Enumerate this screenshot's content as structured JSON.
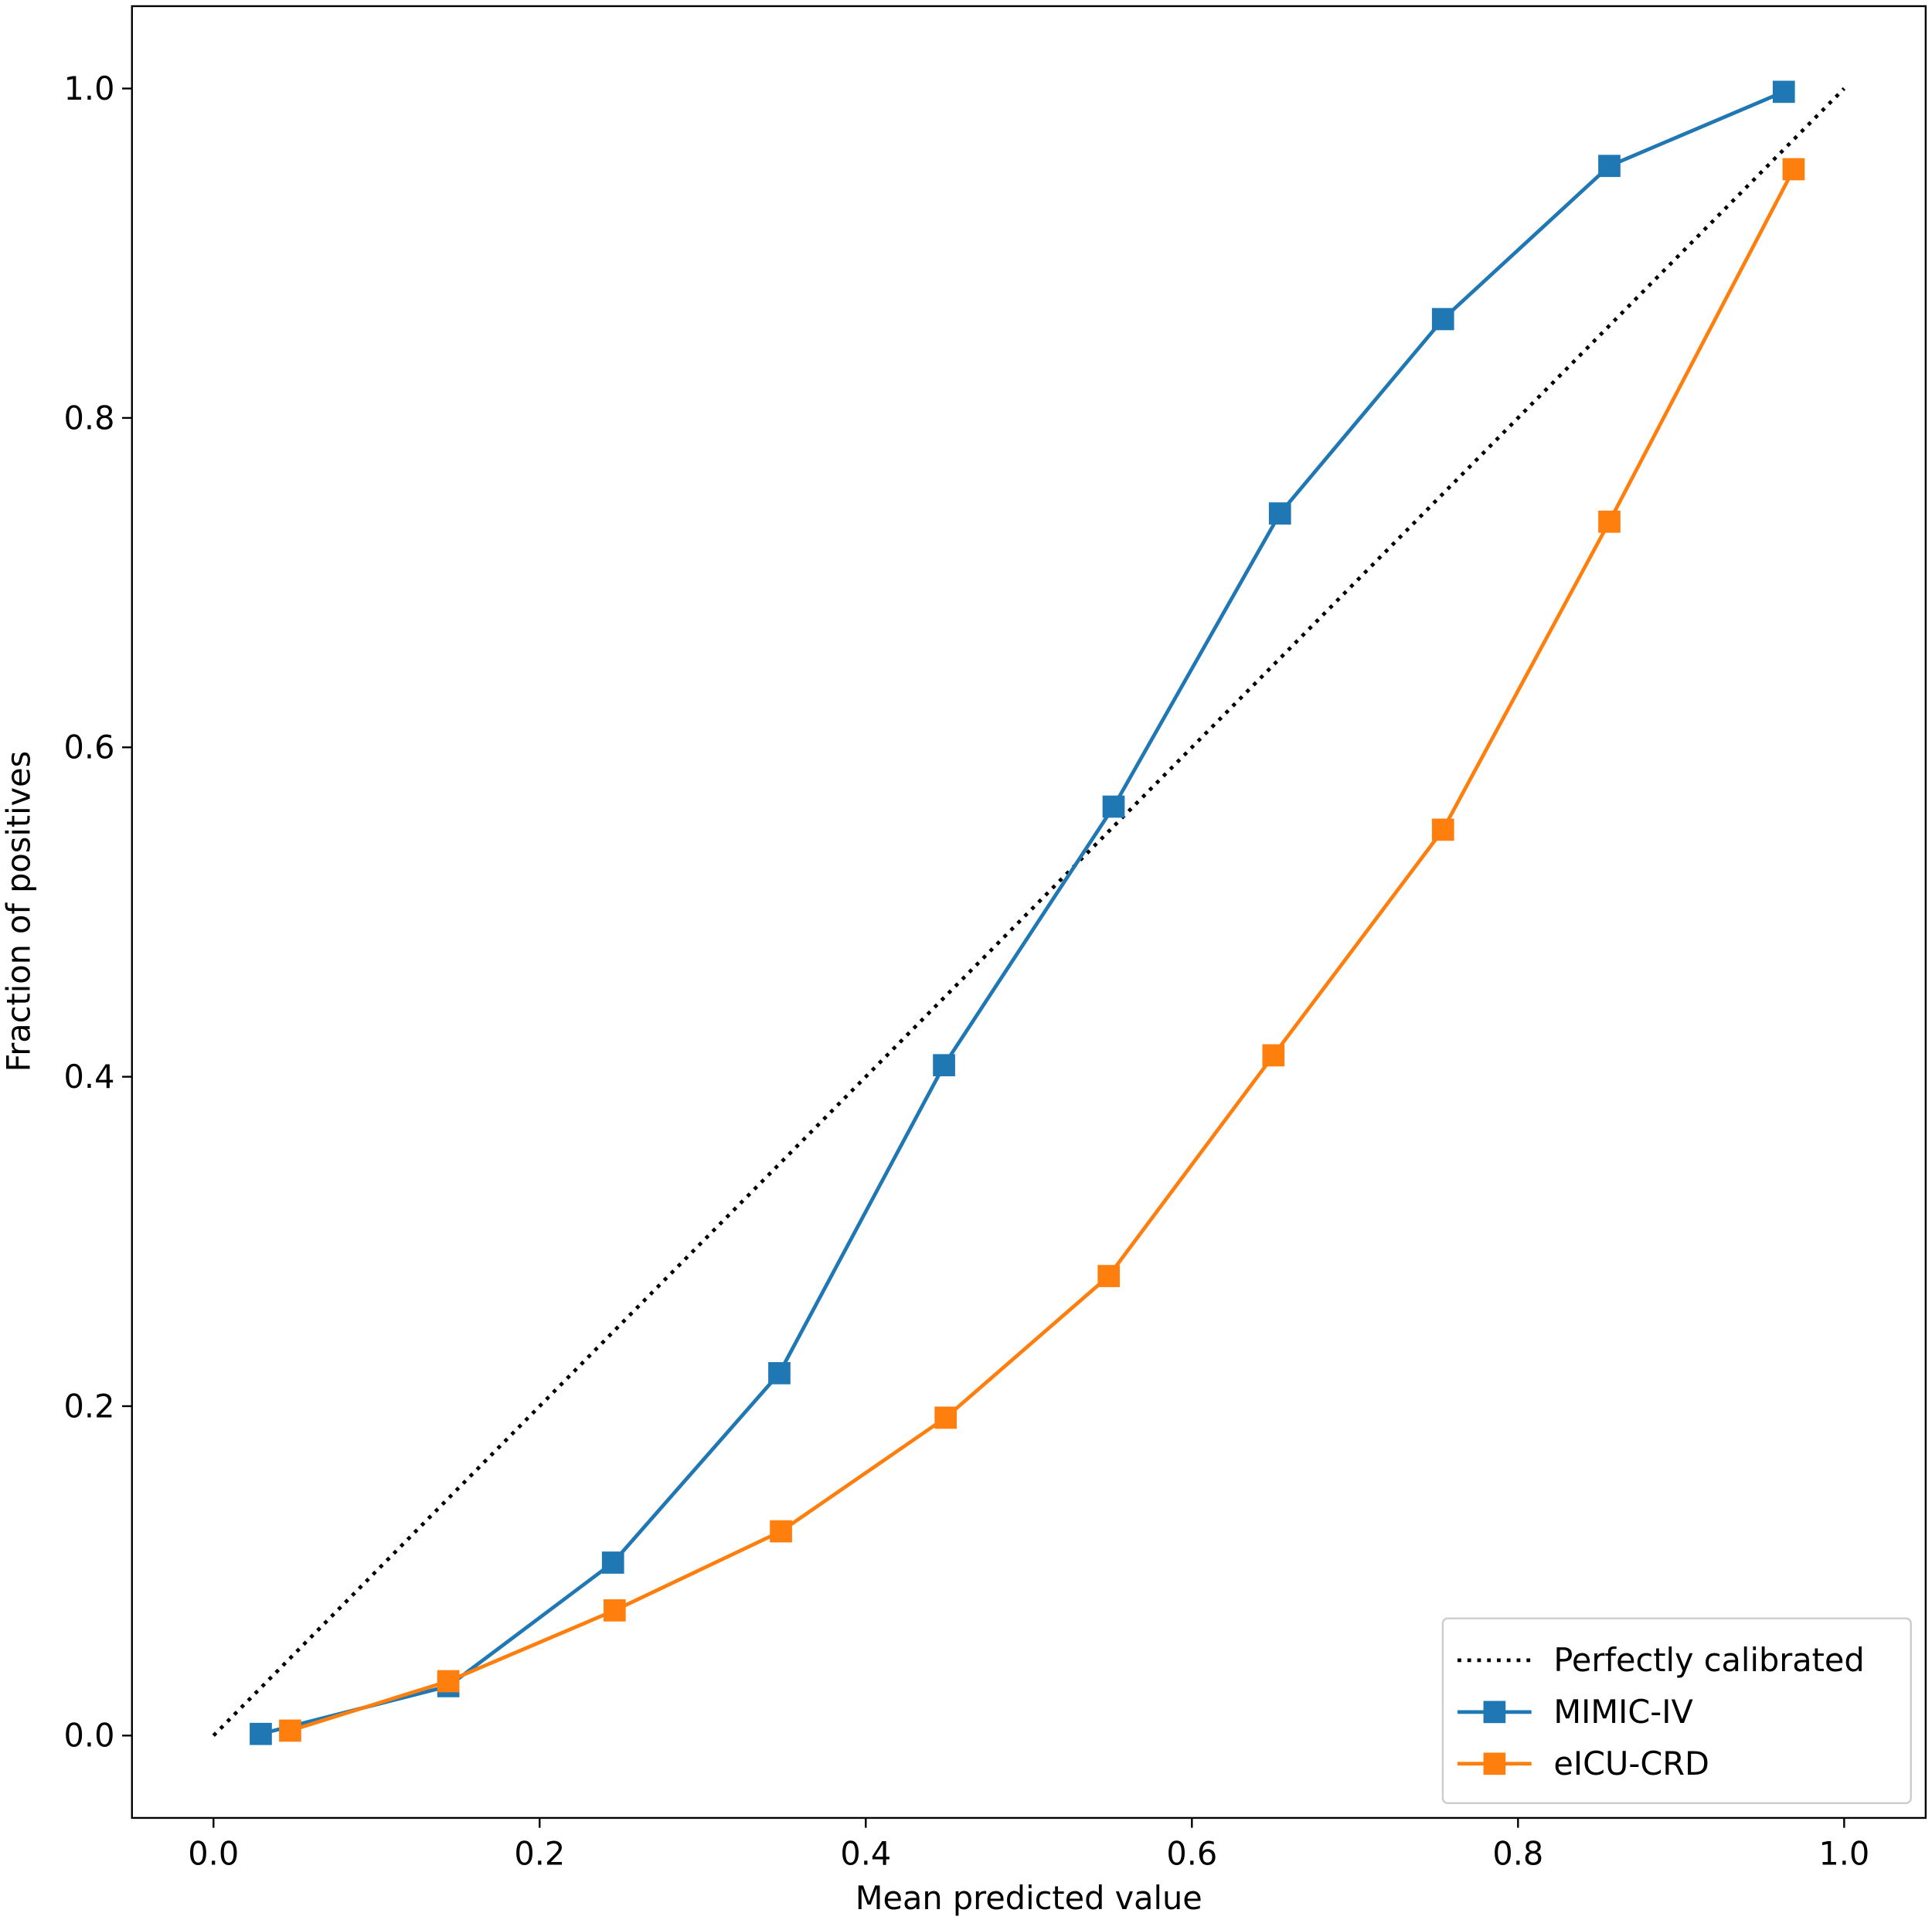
{
  "chart_data": {
    "type": "line",
    "x_label": "Mean predicted value",
    "y_label": "Fraction of positives",
    "xlim": [
      -0.05,
      1.05
    ],
    "ylim": [
      -0.05,
      1.05
    ],
    "xticks": [
      {
        "value": 0,
        "label": "0.0"
      },
      0.2,
      0.4,
      0.6,
      0.8,
      {
        "value": 1,
        "label": "1.0"
      }
    ],
    "yticks": [
      {
        "value": 0,
        "label": "0.0"
      },
      0.2,
      0.4,
      0.6,
      0.8,
      {
        "value": 1,
        "label": "1.0"
      }
    ],
    "grid": false,
    "legend": "lower right",
    "series": [
      {
        "name": "Perfectly calibrated",
        "color": "#000000",
        "style": "dotted",
        "marker": "none",
        "x": [
          0,
          1
        ],
        "values": [
          0,
          1
        ]
      },
      {
        "name": "MIMIC-IV",
        "color": "#1f77b4",
        "style": "solid",
        "marker": "square",
        "x": [
          0.029,
          0.144,
          0.245,
          0.347,
          0.448,
          0.552,
          0.654,
          0.754,
          0.856,
          0.963
        ],
        "values": [
          0.001,
          0.03,
          0.105,
          0.22,
          0.407,
          0.564,
          0.742,
          0.86,
          0.953,
          0.998
        ]
      },
      {
        "name": "eICU-CRD",
        "color": "#ff7f0e",
        "style": "solid",
        "marker": "square",
        "x": [
          0.047,
          0.144,
          0.246,
          0.348,
          0.449,
          0.549,
          0.65,
          0.754,
          0.856,
          0.969
        ],
        "values": [
          0.003,
          0.033,
          0.076,
          0.124,
          0.193,
          0.279,
          0.413,
          0.55,
          0.737,
          0.951
        ]
      }
    ]
  }
}
